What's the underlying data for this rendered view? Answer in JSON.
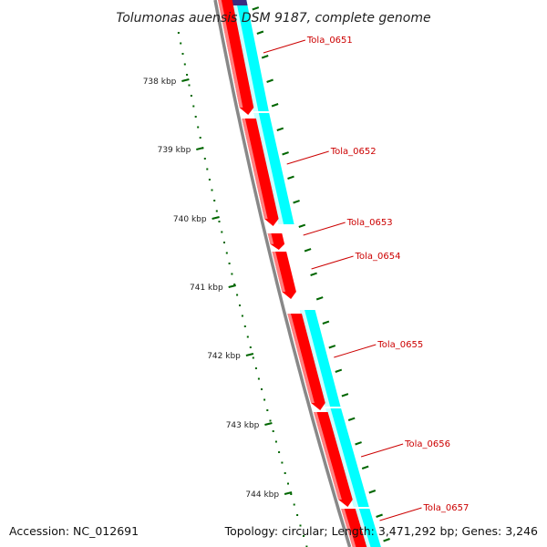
{
  "title": "Tolumonas auensis DSM 9187, complete genome",
  "footer": {
    "accession": "Accession: NC_012691",
    "summary": "Topology: circular; Length: 3,471,292 bp; Genes: 3,246"
  },
  "scale_labels": [
    "738 kbp",
    "739 kbp",
    "740 kbp",
    "741 kbp",
    "742 kbp",
    "743 kbp",
    "744 kbp"
  ],
  "gene_labels": [
    "Tola_0651",
    "Tola_0652",
    "Tola_0653",
    "Tola_0654",
    "Tola_0655",
    "Tola_0656",
    "Tola_0657"
  ],
  "colors": {
    "cds": "#ff0000",
    "cds_highlight": "#ffaaaa",
    "feature_track": "#00ffff",
    "feature_highlight": "#ccffff",
    "backbone": "#888888",
    "tick": "#006600",
    "label": "#cc0000",
    "prior_feature": "#3a2d80"
  }
}
